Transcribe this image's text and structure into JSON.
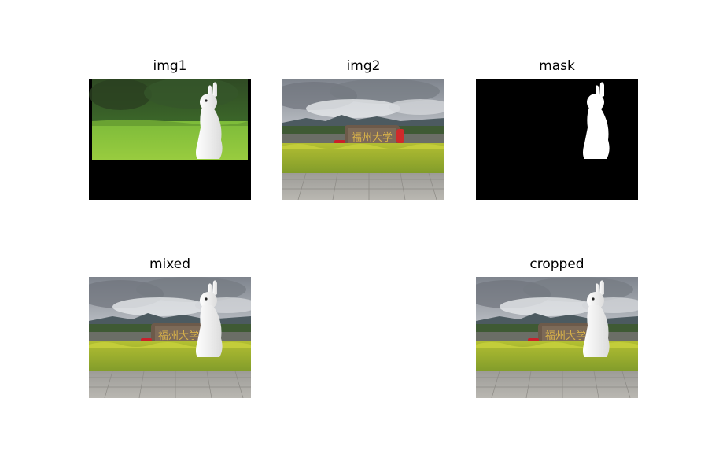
{
  "figure": {
    "subplots": [
      {
        "title": "img1"
      },
      {
        "title": "img2"
      },
      {
        "title": "mask"
      },
      {
        "title": "mixed"
      },
      {
        "title": "cropped"
      }
    ],
    "image_colors": {
      "mask_background": "#000000",
      "mask_foreground": "#ffffff",
      "grass": "#8ac43a",
      "hedge": "#9cae2c",
      "sky": "#bfc3c9",
      "pavement": "#b4b2ac"
    }
  }
}
